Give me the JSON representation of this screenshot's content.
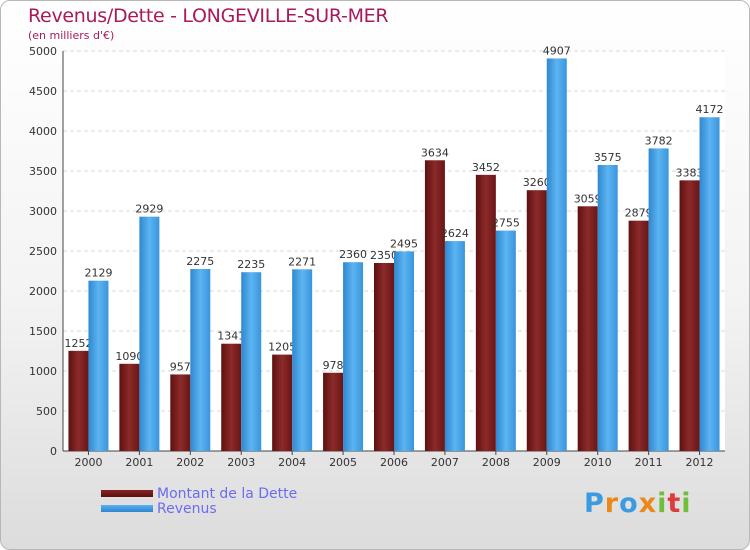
{
  "title": "Revenus/Dette - LONGEVILLE-SUR-MER",
  "subtitle": "(en milliers d'€)",
  "brand": {
    "letters": [
      "P",
      "r",
      "o",
      "x",
      "i",
      "t",
      "i"
    ],
    "colors": [
      "#3b9be0",
      "#e8891a",
      "#3b9be0",
      "#e8891a",
      "#6fbf3a",
      "#e03b3b",
      "#6fbf3a"
    ]
  },
  "colors": {
    "dette": "#7a1a1a",
    "revenus": "#3f9fe6",
    "title": "#a81a5c",
    "legend_text": "#6c6cf0"
  },
  "chart_data": {
    "type": "bar",
    "title": "Revenus/Dette - LONGEVILLE-SUR-MER",
    "ylabel": "(en milliers d'€)",
    "categories": [
      "2000",
      "2001",
      "2002",
      "2003",
      "2004",
      "2005",
      "2006",
      "2007",
      "2008",
      "2009",
      "2010",
      "2011",
      "2012"
    ],
    "series": [
      {
        "name": "Montant de la Dette",
        "values": [
          1252,
          1090,
          957,
          1341,
          1205,
          978,
          2350,
          3634,
          3452,
          3260,
          3059,
          2879,
          3383
        ],
        "color": "#7a1a1a"
      },
      {
        "name": "Revenus",
        "values": [
          2129,
          2929,
          2275,
          2235,
          2271,
          2360,
          2495,
          2624,
          2755,
          4907,
          3575,
          3782,
          4172
        ],
        "color": "#3f9fe6"
      }
    ],
    "value_labels": [
      [
        "1252",
        "1090",
        "957",
        "1341",
        "1205",
        "978",
        "2350",
        "3634",
        "3452",
        "3260",
        "3059",
        "2879",
        "3383"
      ],
      [
        "2129",
        "2929",
        "2275",
        "2235",
        "2271",
        "2360",
        "2495",
        "2624",
        "2755",
        "4907",
        "3575",
        "3782",
        "4172"
      ]
    ],
    "ylim": [
      0,
      5000
    ],
    "yticks": [
      0,
      500,
      1000,
      1500,
      2000,
      2500,
      3000,
      3500,
      4000,
      4500,
      5000
    ],
    "grid": true,
    "legend": "bottom-left"
  }
}
